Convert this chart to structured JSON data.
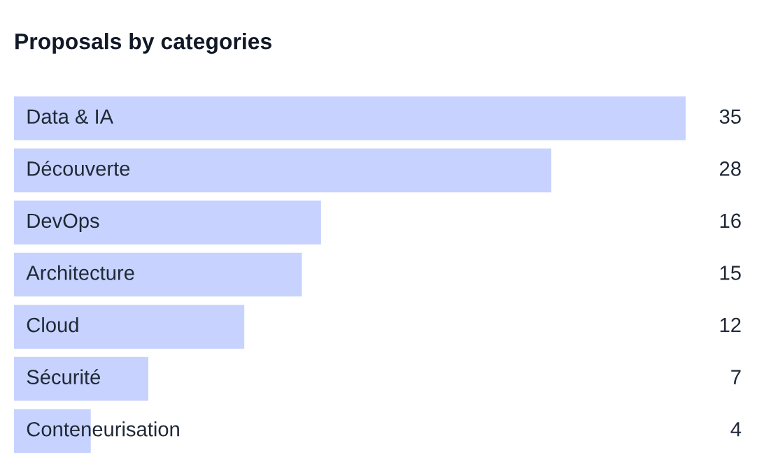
{
  "chart_data": {
    "type": "bar",
    "orientation": "horizontal",
    "title": "Proposals by categories",
    "categories": [
      "Data & IA",
      "Découverte",
      "DevOps",
      "Architecture",
      "Cloud",
      "Sécurité",
      "Conteneurisation"
    ],
    "values": [
      35,
      28,
      16,
      15,
      12,
      7,
      4
    ],
    "color": "#c7d2fe",
    "data_labels": true
  }
}
